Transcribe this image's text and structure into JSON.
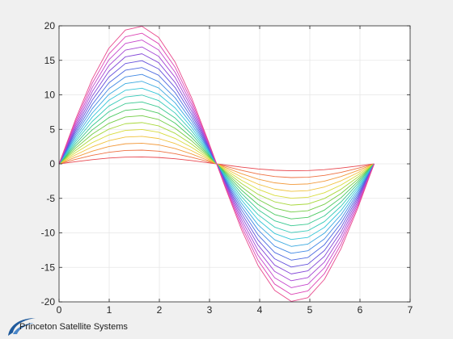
{
  "chart_data": {
    "type": "line",
    "title": "",
    "xlabel": "",
    "ylabel": "",
    "xlim": [
      0,
      7
    ],
    "ylim": [
      -20,
      20
    ],
    "xticks": [
      0,
      1,
      2,
      3,
      4,
      5,
      6,
      7
    ],
    "yticks": [
      20,
      15,
      10,
      5,
      0,
      -5,
      -10,
      -15,
      -20
    ],
    "grid": true,
    "x": [
      0,
      0.3307,
      0.6614,
      0.9921,
      1.3228,
      1.6535,
      1.9842,
      2.3149,
      2.6456,
      2.9762,
      3.3069,
      3.6376,
      3.9683,
      4.299,
      4.6297,
      4.9604,
      5.2911,
      5.6218,
      5.9525,
      6.2832
    ],
    "series": [
      {
        "amplitude": 1,
        "color": "#e8464e",
        "values": [
          0,
          0.32,
          0.61,
          0.84,
          0.97,
          1.0,
          0.92,
          0.74,
          0.48,
          0.16,
          -0.16,
          -0.48,
          -0.74,
          -0.92,
          -1.0,
          -0.97,
          -0.84,
          -0.61,
          -0.32,
          0
        ]
      },
      {
        "amplitude": 2,
        "color": "#ee7040",
        "values": [
          0,
          0.65,
          1.23,
          1.67,
          1.94,
          1.99,
          1.83,
          1.47,
          0.95,
          0.33,
          -0.33,
          -0.95,
          -1.47,
          -1.83,
          -1.99,
          -1.94,
          -1.67,
          -1.23,
          -0.65,
          0
        ]
      },
      {
        "amplitude": 3,
        "color": "#f29a3c",
        "values": [
          0,
          0.97,
          1.84,
          2.51,
          2.91,
          2.99,
          2.75,
          2.21,
          1.43,
          0.49,
          -0.49,
          -1.43,
          -2.21,
          -2.75,
          -2.99,
          -2.91,
          -2.51,
          -1.84,
          -0.97,
          0
        ]
      },
      {
        "amplitude": 4,
        "color": "#f0c23c",
        "values": [
          0,
          1.3,
          2.46,
          3.35,
          3.88,
          3.99,
          3.67,
          2.94,
          1.9,
          0.66,
          -0.66,
          -1.9,
          -2.94,
          -3.67,
          -3.99,
          -3.88,
          -3.35,
          -2.46,
          -1.3,
          0
        ]
      },
      {
        "amplitude": 5,
        "color": "#d8dc3c",
        "values": [
          0,
          1.62,
          3.07,
          4.19,
          4.85,
          4.98,
          4.58,
          3.68,
          2.38,
          0.82,
          -0.82,
          -2.38,
          -3.68,
          -4.58,
          -4.98,
          -4.85,
          -4.19,
          -3.07,
          -1.62,
          0
        ]
      },
      {
        "amplitude": 6,
        "color": "#a8d83c",
        "values": [
          0,
          1.95,
          3.69,
          5.02,
          5.82,
          5.98,
          5.5,
          4.42,
          2.85,
          0.99,
          -0.99,
          -2.85,
          -4.42,
          -5.5,
          -5.98,
          -5.82,
          -5.02,
          -3.69,
          -1.95,
          0
        ]
      },
      {
        "amplitude": 7,
        "color": "#72cc44",
        "values": [
          0,
          2.27,
          4.3,
          5.86,
          6.79,
          6.98,
          6.42,
          5.15,
          3.33,
          1.15,
          -1.15,
          -3.33,
          -5.15,
          -6.42,
          -6.98,
          -6.79,
          -5.86,
          -4.3,
          -2.27,
          0
        ]
      },
      {
        "amplitude": 8,
        "color": "#48c860",
        "values": [
          0,
          2.6,
          4.92,
          6.7,
          7.76,
          7.97,
          7.34,
          5.89,
          3.8,
          1.31,
          -1.31,
          -3.8,
          -5.89,
          -7.34,
          -7.97,
          -7.76,
          -6.7,
          -4.92,
          -2.6,
          0
        ]
      },
      {
        "amplitude": 9,
        "color": "#38c890",
        "values": [
          0,
          2.92,
          5.53,
          7.54,
          8.73,
          8.97,
          8.25,
          6.63,
          4.28,
          1.48,
          -1.48,
          -4.28,
          -6.63,
          -8.25,
          -8.97,
          -8.73,
          -7.54,
          -5.53,
          -2.92,
          0
        ]
      },
      {
        "amplitude": 10,
        "color": "#34cab8",
        "values": [
          0,
          3.25,
          6.14,
          8.37,
          9.69,
          9.97,
          9.17,
          7.36,
          4.76,
          1.65,
          -1.65,
          -4.76,
          -7.36,
          -9.17,
          -9.97,
          -9.69,
          -8.37,
          -6.14,
          -3.25,
          0
        ]
      },
      {
        "amplitude": 11,
        "color": "#34c6d8",
        "values": [
          0,
          3.57,
          6.76,
          9.21,
          10.66,
          10.96,
          10.09,
          8.1,
          5.23,
          1.81,
          -1.81,
          -5.23,
          -8.1,
          -10.09,
          -10.96,
          -10.66,
          -9.21,
          -6.76,
          -3.57,
          0
        ]
      },
      {
        "amplitude": 12,
        "color": "#38a8e0",
        "values": [
          0,
          3.9,
          7.37,
          10.05,
          11.63,
          11.96,
          11.0,
          8.84,
          5.71,
          1.98,
          -1.98,
          -5.71,
          -8.84,
          -11.0,
          -11.96,
          -11.63,
          -10.05,
          -7.37,
          -3.9,
          0
        ]
      },
      {
        "amplitude": 13,
        "color": "#4088e4",
        "values": [
          0,
          4.22,
          7.99,
          10.88,
          12.6,
          12.96,
          11.92,
          9.57,
          6.19,
          2.14,
          -2.14,
          -6.19,
          -9.57,
          -11.92,
          -12.96,
          -12.6,
          -10.88,
          -7.99,
          -4.22,
          0
        ]
      },
      {
        "amplitude": 14,
        "color": "#4c68e0",
        "values": [
          0,
          4.55,
          8.6,
          11.72,
          13.57,
          13.95,
          12.84,
          10.31,
          6.66,
          2.3,
          -2.3,
          -6.66,
          -10.31,
          -12.84,
          -13.95,
          -13.57,
          -11.72,
          -8.6,
          -4.55,
          0
        ]
      },
      {
        "amplitude": 15,
        "color": "#6450dc",
        "values": [
          0,
          4.87,
          9.22,
          12.56,
          14.54,
          14.95,
          13.76,
          11.05,
          7.14,
          2.47,
          -2.47,
          -7.14,
          -11.05,
          -13.76,
          -14.95,
          -14.54,
          -12.56,
          -9.22,
          -4.87,
          0
        ]
      },
      {
        "amplitude": 16,
        "color": "#8448d8",
        "values": [
          0,
          5.19,
          9.83,
          13.39,
          15.51,
          15.95,
          14.67,
          11.78,
          7.61,
          2.64,
          -2.64,
          -7.61,
          -11.78,
          -14.67,
          -15.95,
          -15.51,
          -13.39,
          -9.83,
          -5.19,
          0
        ]
      },
      {
        "amplitude": 17,
        "color": "#a444d4",
        "values": [
          0,
          5.52,
          10.45,
          14.23,
          16.48,
          16.94,
          15.59,
          12.52,
          8.09,
          2.8,
          -2.8,
          -8.09,
          -12.52,
          -15.59,
          -16.94,
          -16.48,
          -14.23,
          -10.45,
          -5.52,
          0
        ]
      },
      {
        "amplitude": 18,
        "color": "#c444cc",
        "values": [
          0,
          5.84,
          11.06,
          15.07,
          17.45,
          17.94,
          16.51,
          13.26,
          8.56,
          2.97,
          -2.97,
          -8.56,
          -13.26,
          -16.51,
          -17.94,
          -17.45,
          -15.07,
          -11.06,
          -5.84,
          0
        ]
      },
      {
        "amplitude": 19,
        "color": "#dc44b4",
        "values": [
          0,
          6.17,
          11.67,
          15.91,
          18.42,
          18.93,
          17.42,
          13.99,
          9.04,
          3.13,
          -3.13,
          -9.04,
          -13.99,
          -17.42,
          -18.93,
          -18.42,
          -15.91,
          -11.67,
          -6.17,
          0
        ]
      },
      {
        "amplitude": 20,
        "color": "#e8488c",
        "values": [
          0,
          6.49,
          12.29,
          16.74,
          19.39,
          19.93,
          18.34,
          14.73,
          9.52,
          3.29,
          -3.29,
          -9.52,
          -14.73,
          -18.34,
          -19.93,
          -19.39,
          -16.74,
          -12.29,
          -6.49,
          0
        ]
      }
    ]
  },
  "colors": {
    "background": "#f0f0f0",
    "axes_background": "#ffffff",
    "grid": "#e6e6e6",
    "axis": "#262626",
    "brand_blue": "#1f5a9c"
  },
  "brand": {
    "logo_icon": "swoosh-logo-icon",
    "text": "Princeton Satellite Systems"
  }
}
